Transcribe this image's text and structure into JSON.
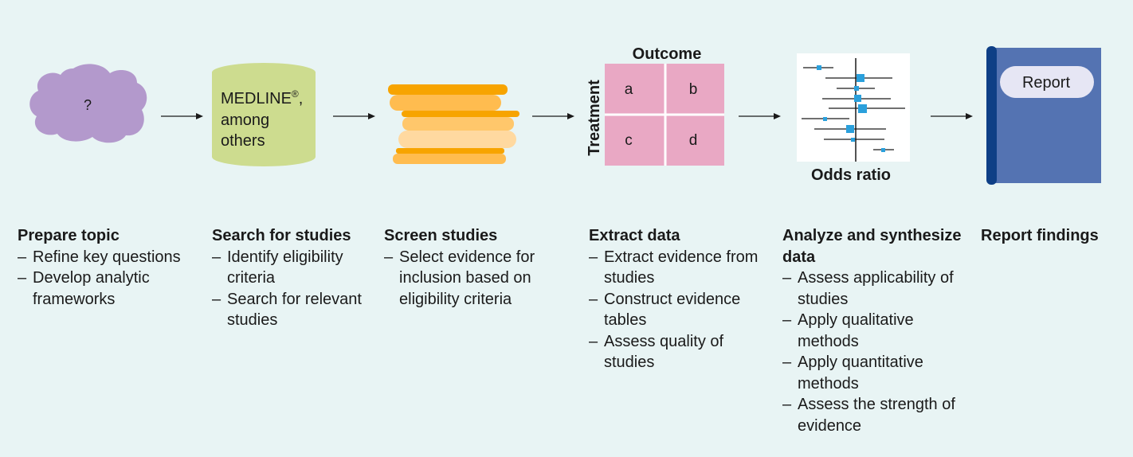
{
  "cloud": {
    "label": "?",
    "color": "#b399cc"
  },
  "database": {
    "line1": "MEDLINE",
    "superscript": "®",
    "line1_suffix": ",",
    "line2": "among",
    "line3": "others",
    "color": "#cddc8f"
  },
  "table": {
    "column_header": "Outcome",
    "row_header": "Treatment",
    "cells": [
      "a",
      "b",
      "c",
      "d"
    ],
    "color": "#e9a8c4"
  },
  "forest_plot": {
    "axis_label": "Odds ratio",
    "marker_color": "#2aa0dc"
  },
  "report": {
    "label": "Report",
    "cover_color": "#5473b2",
    "spine_color": "#0e3f86"
  },
  "steps": [
    {
      "title": "Prepare topic",
      "bullets": [
        "Refine key questions",
        "Develop analytic frameworks"
      ]
    },
    {
      "title": "Search for studies",
      "bullets": [
        "Identify eligibility criteria",
        "Search for relevant studies"
      ]
    },
    {
      "title": "Screen studies",
      "bullets": [
        "Select evidence for inclusion based on eligibility criteria"
      ]
    },
    {
      "title": "Extract data",
      "bullets": [
        "Extract evidence from studies",
        "Construct evidence tables",
        "Assess quality of studies"
      ]
    },
    {
      "title": "Analyze and synthesize data",
      "bullets": [
        "Assess applicability of studies",
        "Apply qualitative methods",
        "Apply quantitative methods",
        "Assess the strength of evidence"
      ]
    },
    {
      "title": "Report findings",
      "bullets": []
    }
  ]
}
